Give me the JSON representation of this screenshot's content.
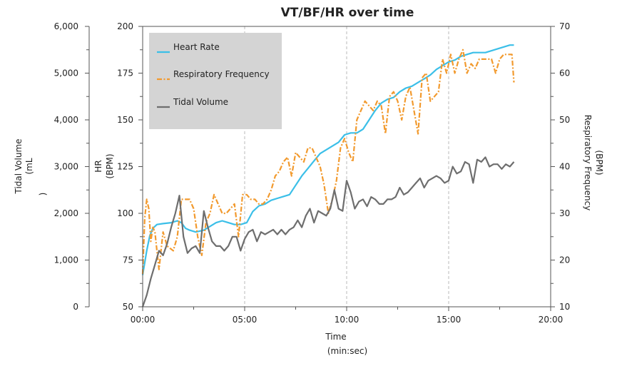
{
  "chart_data": {
    "type": "line",
    "title": "VT/BF/HR over time",
    "xlabel": [
      "Time",
      "(min:sec)"
    ],
    "x_ticks": [
      "00:00",
      "05:00",
      "10:00",
      "15:00",
      "20:00"
    ],
    "xlim": [
      0,
      20
    ],
    "axes": {
      "vt": {
        "title": [
          "Tidal Volume",
          "(mL",
          ")"
        ],
        "ylim": [
          0,
          6000
        ],
        "major_ticks": [
          0,
          1000,
          2000,
          3000,
          4000,
          5000,
          6000
        ],
        "tick_labels": [
          "0",
          "1,000",
          "2,000",
          "3,000",
          "4,000",
          "5,000",
          "6,000"
        ]
      },
      "hr": {
        "title": [
          "HR",
          "(BPM)"
        ],
        "ylim": [
          50,
          200
        ],
        "major_ticks": [
          50,
          75,
          100,
          125,
          150,
          175,
          200
        ],
        "tick_labels": [
          "50",
          "75",
          "100",
          "125",
          "150",
          "175",
          "200"
        ]
      },
      "rf": {
        "title": [
          "Respiratory Frequency",
          "(BPM)"
        ],
        "ylim": [
          10,
          70
        ],
        "major_ticks": [
          10,
          20,
          30,
          40,
          50,
          60,
          70
        ],
        "tick_labels": [
          "10",
          "20",
          "30",
          "40",
          "50",
          "60",
          "70"
        ]
      }
    },
    "legend": {
      "position": "top-left",
      "entries": [
        "Heart Rate",
        "Respiratory Frequency",
        "Tidal Volume"
      ]
    },
    "vertical_gridlines": [
      5,
      10,
      15
    ],
    "series": [
      {
        "name": "Heart Rate",
        "axis": "hr",
        "color": "#3bbfe8",
        "style": "solid",
        "x": [
          0,
          0.2,
          0.35,
          0.5,
          0.7,
          1.0,
          1.4,
          1.7,
          1.9,
          2.1,
          2.3,
          2.6,
          3.0,
          3.3,
          3.6,
          3.9,
          4.2,
          4.5,
          4.8,
          5.1,
          5.4,
          5.7,
          6.0,
          6.3,
          6.6,
          6.9,
          7.2,
          7.5,
          7.8,
          8.1,
          8.4,
          8.7,
          9.0,
          9.3,
          9.6,
          9.9,
          10.2,
          10.5,
          10.8,
          11.1,
          11.4,
          11.7,
          12.0,
          12.3,
          12.6,
          12.9,
          13.2,
          13.5,
          13.8,
          14.1,
          14.4,
          14.7,
          15.0,
          15.3,
          15.6,
          15.9,
          16.2,
          16.5,
          16.8,
          17.1,
          17.4,
          17.7,
          18.0,
          18.2
        ],
        "values": [
          67,
          80,
          88,
          92,
          94,
          94.5,
          95,
          96,
          95,
          92,
          91,
          90,
          91,
          93,
          95,
          96,
          95,
          94,
          94,
          95,
          101,
          104,
          105,
          107,
          108,
          109,
          110,
          115,
          120,
          124,
          128,
          132,
          134,
          136,
          138,
          142,
          143,
          143,
          145,
          150,
          155,
          159,
          161,
          162,
          165,
          167,
          168,
          170,
          172,
          174,
          177,
          179,
          181,
          182,
          184,
          185,
          186,
          186,
          186,
          187,
          188,
          189,
          190,
          190
        ]
      },
      {
        "name": "Respiratory Frequency",
        "axis": "rf",
        "color": "#f29a2e",
        "style": "dash-dot",
        "x": [
          0,
          0.1,
          0.2,
          0.3,
          0.4,
          0.5,
          0.6,
          0.7,
          0.8,
          0.9,
          1.0,
          1.2,
          1.5,
          1.7,
          1.9,
          2.1,
          2.3,
          2.5,
          2.7,
          2.9,
          3.1,
          3.3,
          3.5,
          3.7,
          3.9,
          4.1,
          4.3,
          4.5,
          4.7,
          4.9,
          5.1,
          5.3,
          5.5,
          5.7,
          5.9,
          6.1,
          6.3,
          6.5,
          6.7,
          6.9,
          7.1,
          7.3,
          7.5,
          7.7,
          7.9,
          8.1,
          8.3,
          8.5,
          8.7,
          8.9,
          9.1,
          9.3,
          9.5,
          9.7,
          9.9,
          10.1,
          10.3,
          10.5,
          10.7,
          10.9,
          11.1,
          11.3,
          11.5,
          11.7,
          11.9,
          12.1,
          12.3,
          12.5,
          12.7,
          12.9,
          13.1,
          13.3,
          13.5,
          13.7,
          13.9,
          14.1,
          14.3,
          14.5,
          14.7,
          14.9,
          15.1,
          15.3,
          15.5,
          15.7,
          15.9,
          16.1,
          16.3,
          16.5,
          16.7,
          16.9,
          17.1,
          17.3,
          17.5,
          17.7,
          17.9,
          18.1,
          18.2
        ],
        "values": [
          17,
          29,
          33,
          31,
          24,
          27,
          26,
          22,
          18,
          22,
          26,
          23,
          22,
          25,
          33,
          33,
          33,
          31,
          25,
          21,
          28,
          30,
          34,
          32,
          30,
          30,
          31,
          32,
          25,
          34,
          34,
          33,
          33,
          32,
          32,
          33,
          35,
          38,
          39,
          41,
          42,
          38,
          43,
          42,
          41,
          44,
          44,
          42,
          40,
          36,
          30,
          33,
          37,
          44,
          46,
          43,
          41,
          50,
          52,
          54,
          53,
          52,
          54,
          53,
          47,
          55,
          56,
          54,
          50,
          55,
          57,
          52,
          47,
          59,
          60,
          54,
          55,
          56,
          63,
          60,
          64,
          60,
          63,
          65,
          60,
          62,
          61,
          63,
          63,
          63,
          63,
          60,
          63,
          64,
          64,
          64,
          58
        ]
      },
      {
        "name": "Tidal Volume",
        "axis": "vt",
        "color": "#6e6e6e",
        "style": "solid",
        "x": [
          0,
          0.2,
          0.4,
          0.6,
          0.8,
          1.0,
          1.2,
          1.4,
          1.6,
          1.8,
          2.0,
          2.2,
          2.4,
          2.6,
          2.8,
          3.0,
          3.2,
          3.4,
          3.6,
          3.8,
          4.0,
          4.2,
          4.4,
          4.6,
          4.8,
          5.0,
          5.2,
          5.4,
          5.6,
          5.8,
          6.0,
          6.2,
          6.4,
          6.6,
          6.8,
          7.0,
          7.2,
          7.4,
          7.6,
          7.8,
          8.0,
          8.2,
          8.4,
          8.6,
          8.8,
          9.0,
          9.2,
          9.4,
          9.6,
          9.8,
          10.0,
          10.2,
          10.4,
          10.6,
          10.8,
          11.0,
          11.2,
          11.4,
          11.6,
          11.8,
          12.0,
          12.2,
          12.4,
          12.6,
          12.8,
          13.0,
          13.2,
          13.4,
          13.6,
          13.8,
          14.0,
          14.2,
          14.4,
          14.6,
          14.8,
          15.0,
          15.2,
          15.4,
          15.6,
          15.8,
          16.0,
          16.2,
          16.4,
          16.6,
          16.8,
          17.0,
          17.2,
          17.4,
          17.6,
          17.8,
          18.0,
          18.2
        ],
        "values": [
          0,
          250,
          600,
          900,
          1200,
          1100,
          1350,
          1700,
          2000,
          2380,
          1500,
          1150,
          1250,
          1300,
          1150,
          2050,
          1700,
          1400,
          1300,
          1300,
          1200,
          1300,
          1500,
          1500,
          1200,
          1450,
          1600,
          1650,
          1400,
          1600,
          1550,
          1600,
          1650,
          1550,
          1650,
          1550,
          1650,
          1700,
          1850,
          1700,
          1950,
          2100,
          1800,
          2050,
          2000,
          1950,
          2100,
          2500,
          2100,
          2050,
          2700,
          2450,
          2100,
          2250,
          2300,
          2150,
          2350,
          2300,
          2200,
          2200,
          2300,
          2300,
          2350,
          2550,
          2400,
          2450,
          2550,
          2650,
          2750,
          2550,
          2700,
          2750,
          2800,
          2750,
          2650,
          2700,
          3000,
          2850,
          2900,
          3100,
          3050,
          2650,
          3150,
          3100,
          3200,
          3000,
          3050,
          3050,
          2950,
          3050,
          3000,
          3100
        ]
      }
    ]
  }
}
